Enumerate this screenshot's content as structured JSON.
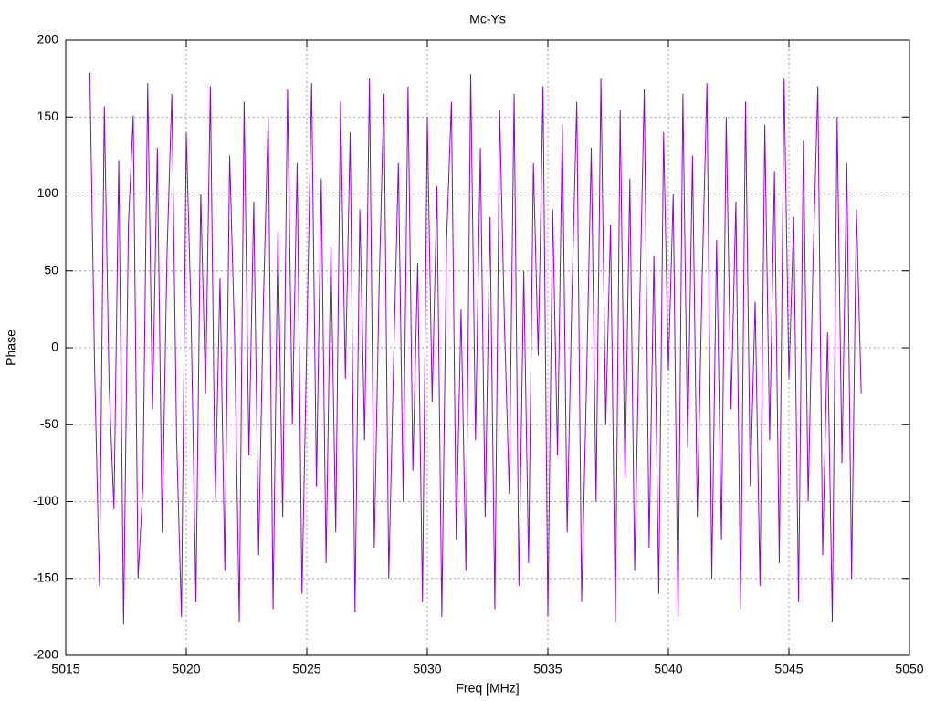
{
  "chart_data": {
    "type": "line",
    "title": "Mc-Ys",
    "xlabel": "Freq [MHz]",
    "ylabel": "Phase",
    "xlim": [
      5015,
      5050
    ],
    "xticks": [
      5015,
      5020,
      5025,
      5030,
      5035,
      5040,
      5045,
      5050
    ],
    "ylim": [
      -200,
      200
    ],
    "yticks": [
      -200,
      -150,
      -100,
      -50,
      0,
      50,
      100,
      150,
      200
    ],
    "grid": true,
    "x": [
      5016,
      5016.2,
      5016.4,
      5016.6,
      5016.8,
      5017,
      5017.2,
      5017.4,
      5017.6,
      5017.8,
      5018,
      5018.2,
      5018.4,
      5018.6,
      5018.8,
      5019,
      5019.2,
      5019.4,
      5019.6,
      5019.8,
      5020,
      5020.2,
      5020.4,
      5020.6,
      5020.8,
      5021,
      5021.2,
      5021.4,
      5021.6,
      5021.8,
      5022,
      5022.2,
      5022.4,
      5022.6,
      5022.8,
      5023,
      5023.2,
      5023.4,
      5023.6,
      5023.8,
      5024,
      5024.2,
      5024.4,
      5024.6,
      5024.8,
      5025,
      5025.2,
      5025.4,
      5025.6,
      5025.8,
      5026,
      5026.2,
      5026.4,
      5026.6,
      5026.8,
      5027,
      5027.2,
      5027.4,
      5027.6,
      5027.8,
      5028,
      5028.2,
      5028.4,
      5028.6,
      5028.8,
      5029,
      5029.2,
      5029.4,
      5029.6,
      5029.8,
      5030,
      5030.2,
      5030.4,
      5030.6,
      5030.8,
      5031,
      5031.2,
      5031.4,
      5031.6,
      5031.8,
      5032,
      5032.2,
      5032.4,
      5032.6,
      5032.8,
      5033,
      5033.2,
      5033.4,
      5033.6,
      5033.8,
      5034,
      5034.2,
      5034.4,
      5034.6,
      5034.8,
      5035,
      5035.2,
      5035.4,
      5035.6,
      5035.8,
      5036,
      5036.2,
      5036.4,
      5036.6,
      5036.8,
      5037,
      5037.2,
      5037.4,
      5037.6,
      5037.8,
      5038,
      5038.2,
      5038.4,
      5038.6,
      5038.8,
      5039,
      5039.2,
      5039.4,
      5039.6,
      5039.8,
      5040,
      5040.2,
      5040.4,
      5040.6,
      5040.8,
      5041,
      5041.2,
      5041.4,
      5041.6,
      5041.8,
      5042,
      5042.2,
      5042.4,
      5042.6,
      5042.8,
      5043,
      5043.2,
      5043.4,
      5043.6,
      5043.8,
      5044,
      5044.2,
      5044.4,
      5044.6,
      5044.8,
      5045,
      5045.2,
      5045.4,
      5045.6,
      5045.8,
      5046,
      5046.2,
      5046.4,
      5046.6,
      5046.8,
      5047,
      5047.2,
      5047.4,
      5047.6,
      5047.8,
      5048
    ],
    "series": [
      {
        "color": "#9400d3",
        "values": [
          179,
          -15,
          -155,
          157,
          -25,
          -105,
          122,
          -180,
          80,
          151,
          -150,
          -90,
          172,
          -40,
          130,
          -120,
          60,
          165,
          -60,
          -175,
          140,
          20,
          -165,
          100,
          -30,
          170,
          -100,
          45,
          -145,
          125,
          10,
          -178,
          160,
          -70,
          95,
          -135,
          30,
          150,
          -170,
          75,
          -110,
          168,
          -50,
          120,
          -160,
          5,
          172,
          -90,
          110,
          -140,
          65,
          -120,
          160,
          -20,
          140,
          -172,
          90,
          -60,
          175,
          -130,
          40,
          165,
          -150,
          -10,
          120,
          -100,
          170,
          -80,
          55,
          -165,
          150,
          -35,
          105,
          -175,
          70,
          160,
          -125,
          25,
          -145,
          178,
          -60,
          130,
          -110,
          85,
          -170,
          155,
          15,
          -95,
          165,
          -155,
          50,
          -140,
          120,
          -5,
          170,
          -175,
          90,
          -70,
          145,
          -120,
          35,
          160,
          -165,
          -25,
          130,
          -100,
          175,
          -50,
          80,
          -178,
          155,
          -85,
          110,
          -145,
          20,
          168,
          -130,
          60,
          -160,
          140,
          -15,
          100,
          -175,
          165,
          -65,
          125,
          -110,
          45,
          172,
          -150,
          70,
          -125,
          150,
          -40,
          95,
          -170,
          160,
          -90,
          30,
          -155,
          145,
          -60,
          115,
          -140,
          175,
          -20,
          85,
          -165,
          135,
          -100,
          55,
          170,
          -135,
          10,
          -178,
          150,
          -75,
          120,
          -150,
          90,
          -30
        ]
      }
    ]
  }
}
